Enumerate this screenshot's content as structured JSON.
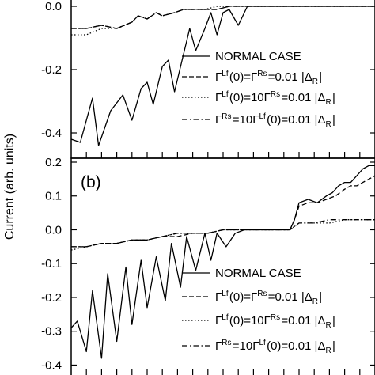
{
  "chart_data": [
    {
      "panel": "a",
      "panel_label": "",
      "type": "line",
      "ylabel": "Current (arb. units)",
      "ylim": [
        -0.48,
        0.02
      ],
      "yticks": [
        0.0,
        -0.2,
        -0.4
      ],
      "ytick_labels": [
        "0.0",
        "-0.2",
        "-0.4"
      ],
      "xlim": [
        0,
        100
      ],
      "xticks": [
        5,
        10,
        15,
        20,
        25,
        30,
        35,
        40,
        45,
        50,
        55,
        60,
        65,
        70,
        75,
        80,
        85,
        90,
        95
      ],
      "legend_position": "center-right",
      "legend": [
        {
          "label": "NORMAL CASE",
          "dash": "solid"
        },
        {
          "label": "ΓLf(0)=ΓRs=0.01 |ΔR|",
          "dash": "dashed"
        },
        {
          "label": "ΓLf(0)=10ΓRs=0.01 |ΔR|",
          "dash": "dotted"
        },
        {
          "label": "ΓRs=10ΓLf(0)=0.01 |ΔR|",
          "dash": "dashdot"
        }
      ],
      "series": [
        {
          "dash": "solid",
          "x": [
            0,
            3,
            7,
            9,
            13,
            17,
            20,
            23,
            25,
            27,
            30,
            32,
            34,
            37,
            39,
            41,
            44,
            46,
            48,
            50,
            52,
            55,
            58,
            60,
            62,
            64,
            100
          ],
          "y": [
            -0.42,
            -0.43,
            -0.29,
            -0.44,
            -0.33,
            -0.28,
            -0.36,
            -0.26,
            -0.24,
            -0.31,
            -0.19,
            -0.17,
            -0.27,
            -0.15,
            -0.07,
            -0.14,
            -0.07,
            -0.02,
            -0.09,
            -0.02,
            -0.01,
            -0.06,
            0.0,
            0.0,
            0.0,
            0.0,
            0.0
          ]
        },
        {
          "dash": "dashed",
          "x": [
            0,
            5,
            10,
            15,
            20,
            22,
            25,
            28,
            30,
            34,
            37,
            40,
            44,
            48,
            52,
            56,
            60,
            100
          ],
          "y": [
            -0.07,
            -0.07,
            -0.06,
            -0.07,
            -0.05,
            -0.03,
            -0.04,
            -0.02,
            -0.03,
            -0.02,
            -0.01,
            -0.01,
            -0.01,
            -0.01,
            0.0,
            0.0,
            0.0,
            0.0
          ]
        },
        {
          "dash": "dotted",
          "x": [
            0,
            5,
            10,
            15,
            20,
            22,
            25,
            28,
            30,
            34,
            37,
            40,
            44,
            48,
            52,
            56,
            60,
            100
          ],
          "y": [
            -0.09,
            -0.09,
            -0.07,
            -0.07,
            -0.05,
            -0.03,
            -0.04,
            -0.02,
            -0.03,
            -0.02,
            -0.01,
            -0.01,
            -0.01,
            0.0,
            0.0,
            0.0,
            0.0,
            0.0
          ]
        },
        {
          "dash": "dashdot",
          "x": [
            0,
            5,
            10,
            15,
            20,
            22,
            25,
            28,
            30,
            34,
            37,
            40,
            44,
            48,
            52,
            56,
            60,
            100
          ],
          "y": [
            -0.07,
            -0.07,
            -0.06,
            -0.07,
            -0.05,
            -0.03,
            -0.04,
            -0.02,
            -0.03,
            -0.02,
            -0.01,
            -0.01,
            -0.01,
            -0.01,
            0.0,
            0.0,
            0.0,
            0.0
          ]
        }
      ]
    },
    {
      "panel": "b",
      "panel_label": "(b)",
      "type": "line",
      "ylabel": "Current (arb. units)",
      "ylim": [
        -0.42,
        0.2
      ],
      "yticks": [
        0.2,
        0.1,
        0.0,
        -0.1,
        -0.2,
        -0.3,
        -0.4
      ],
      "ytick_labels": [
        "0.2",
        "0.1",
        "0.0",
        "-0.1",
        "-0.2",
        "-0.3",
        "-0.4"
      ],
      "xlim": [
        0,
        100
      ],
      "xticks": [
        5,
        10,
        15,
        20,
        25,
        30,
        35,
        40,
        45,
        50,
        55,
        60,
        65,
        70,
        75,
        80,
        85,
        90,
        95
      ],
      "legend_position": "bottom-right",
      "legend": [
        {
          "label": "NORMAL CASE",
          "dash": "solid"
        },
        {
          "label": "ΓLf(0)=ΓRs=0.01 |ΔR|",
          "dash": "dashed"
        },
        {
          "label": "ΓLf(0)=10ΓRs=0.01 |ΔR|",
          "dash": "dotted"
        },
        {
          "label": "ΓRs=10ΓLf(0)=0.01 |ΔR|",
          "dash": "dashdot"
        }
      ],
      "series": [
        {
          "dash": "solid",
          "x": [
            0,
            2,
            5,
            7,
            10,
            12,
            15,
            18,
            20,
            23,
            25,
            28,
            31,
            33,
            36,
            38,
            41,
            44,
            46,
            48,
            51,
            54,
            57,
            60,
            63,
            66,
            69,
            72,
            73.5,
            75,
            78,
            81,
            84,
            86,
            88,
            90,
            92,
            94,
            96,
            98,
            100
          ],
          "y": [
            -0.29,
            -0.27,
            -0.36,
            -0.18,
            -0.38,
            -0.13,
            -0.33,
            -0.11,
            -0.28,
            -0.09,
            -0.23,
            -0.08,
            -0.21,
            -0.04,
            -0.17,
            -0.02,
            -0.12,
            -0.01,
            -0.09,
            -0.01,
            -0.05,
            -0.01,
            0.0,
            0.0,
            0.0,
            0.0,
            0.0,
            0.0,
            0.03,
            0.08,
            0.09,
            0.08,
            0.1,
            0.11,
            0.13,
            0.14,
            0.14,
            0.16,
            0.18,
            0.19,
            0.19
          ]
        },
        {
          "dash": "dashed",
          "x": [
            0,
            5,
            10,
            15,
            20,
            25,
            30,
            35,
            40,
            45,
            50,
            55,
            60,
            70,
            72,
            73.5,
            75,
            78,
            81,
            84,
            87,
            90,
            92,
            94,
            96,
            98,
            100
          ],
          "y": [
            -0.05,
            -0.05,
            -0.04,
            -0.04,
            -0.03,
            -0.03,
            -0.02,
            -0.02,
            -0.01,
            -0.01,
            0.0,
            0.0,
            0.0,
            0.0,
            0.0,
            0.03,
            0.07,
            0.08,
            0.08,
            0.09,
            0.1,
            0.12,
            0.13,
            0.13,
            0.14,
            0.15,
            0.16
          ]
        },
        {
          "dash": "dotted",
          "x": [
            0,
            5,
            10,
            15,
            20,
            25,
            30,
            35,
            40,
            45,
            50,
            55,
            60,
            70,
            72,
            73.5,
            75,
            80,
            85,
            90,
            95,
            100
          ],
          "y": [
            -0.06,
            -0.05,
            -0.04,
            -0.04,
            -0.03,
            -0.03,
            -0.02,
            -0.01,
            -0.01,
            -0.01,
            0.0,
            0.0,
            0.0,
            0.0,
            0.0,
            0.01,
            0.02,
            0.02,
            0.02,
            0.03,
            0.03,
            0.03
          ]
        },
        {
          "dash": "dashdot",
          "x": [
            0,
            5,
            10,
            15,
            20,
            25,
            30,
            35,
            40,
            45,
            50,
            55,
            60,
            70,
            72,
            73.5,
            75,
            80,
            85,
            90,
            95,
            100
          ],
          "y": [
            -0.05,
            -0.05,
            -0.04,
            -0.04,
            -0.03,
            -0.03,
            -0.02,
            -0.01,
            -0.01,
            -0.01,
            0.0,
            0.0,
            0.0,
            0.0,
            0.0,
            0.01,
            0.02,
            0.02,
            0.03,
            0.03,
            0.03,
            0.03
          ]
        }
      ]
    }
  ],
  "colors": {
    "line": "#000000",
    "background": "#ffffff"
  }
}
